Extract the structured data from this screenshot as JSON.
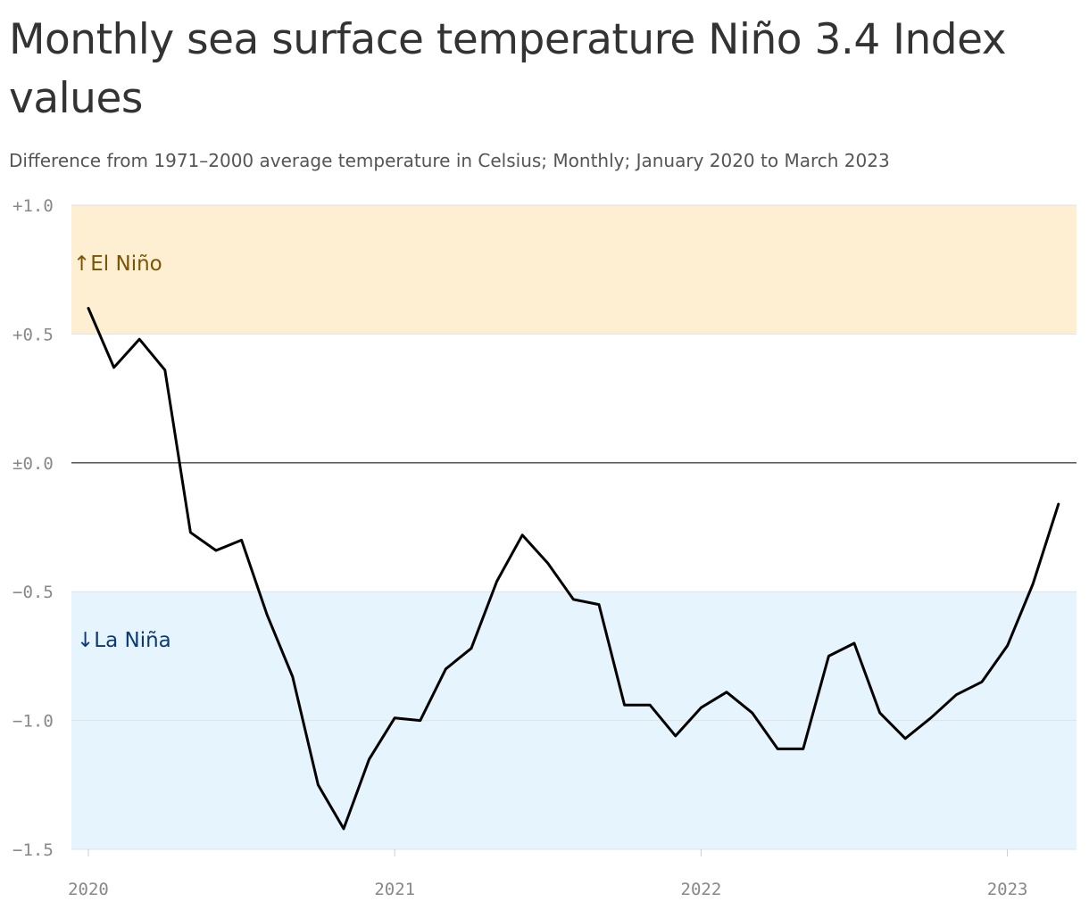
{
  "chart_data": {
    "type": "line",
    "title": "Monthly sea surface temperature Niño 3.4 Index values",
    "subtitle": "Difference from 1971–2000 average temperature in Celsius; Monthly; January 2020 to March 2023",
    "xlabel": "",
    "ylabel": "",
    "ylim": [
      -1.5,
      1.0
    ],
    "y_ticks": [
      1.0,
      0.5,
      0.0,
      -0.5,
      -1.0,
      -1.5
    ],
    "y_tick_labels": [
      "+1.0",
      "+0.5",
      "±0.0",
      "−0.5",
      "−1.0",
      "−1.5"
    ],
    "x_tick_labels": [
      "2020",
      "2021",
      "2022",
      "2023"
    ],
    "grid": "horizontal",
    "bands": [
      {
        "label": "↑El Niño",
        "from": 0.5,
        "to": 1.0,
        "color": "#feefd2",
        "text_color": "#7a5400"
      },
      {
        "label": "↓La Niña",
        "from": -1.5,
        "to": -0.5,
        "color": "#e6f4fd",
        "text_color": "#0b3a78"
      }
    ],
    "line_color": "#000000",
    "series": [
      {
        "x": [
          "2020-01",
          "2020-02",
          "2020-03",
          "2020-04",
          "2020-05",
          "2020-06",
          "2020-07",
          "2020-08",
          "2020-09",
          "2020-10",
          "2020-11",
          "2020-12",
          "2021-01",
          "2021-02",
          "2021-03",
          "2021-04",
          "2021-05",
          "2021-06",
          "2021-07",
          "2021-08",
          "2021-09",
          "2021-10",
          "2021-11",
          "2021-12",
          "2022-01",
          "2022-02",
          "2022-03",
          "2022-04",
          "2022-05",
          "2022-06",
          "2022-07",
          "2022-08",
          "2022-09",
          "2022-10",
          "2022-11",
          "2022-12",
          "2023-01",
          "2023-02",
          "2023-03"
        ],
        "values": [
          0.6,
          0.37,
          0.48,
          0.36,
          -0.27,
          -0.34,
          -0.3,
          -0.59,
          -0.83,
          -1.25,
          -1.42,
          -1.15,
          -0.99,
          -1.0,
          -0.8,
          -0.72,
          -0.46,
          -0.28,
          -0.39,
          -0.53,
          -0.55,
          -0.94,
          -0.94,
          -1.06,
          -0.95,
          -0.89,
          -0.97,
          -1.11,
          -1.11,
          -0.75,
          -0.7,
          -0.97,
          -1.07,
          -0.99,
          -0.9,
          -0.85,
          -0.71,
          -0.47,
          -0.16
        ]
      }
    ]
  }
}
